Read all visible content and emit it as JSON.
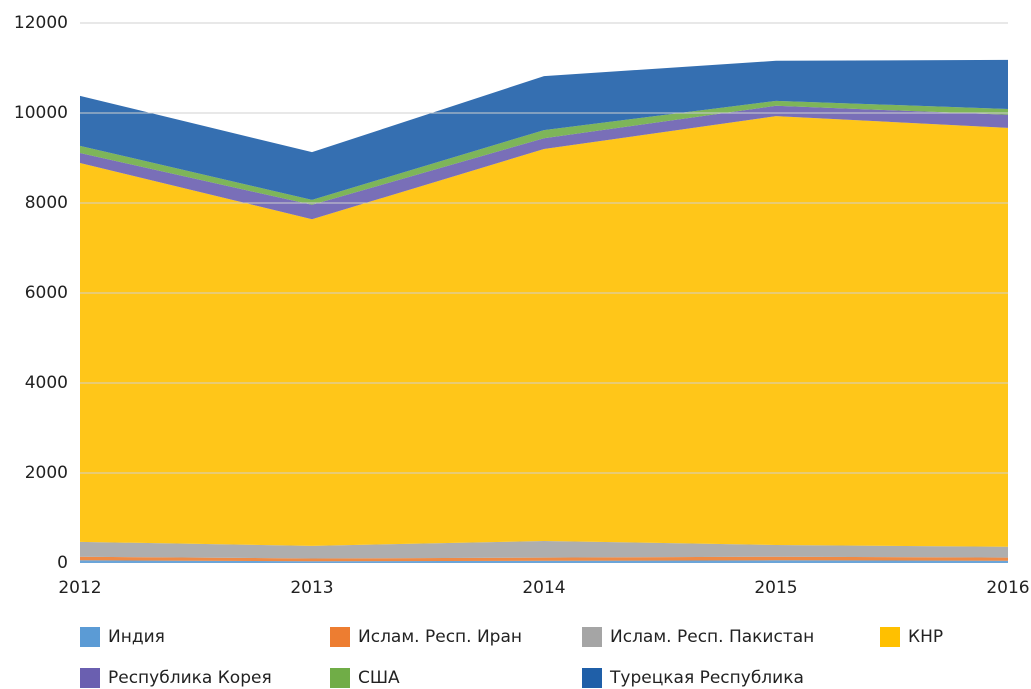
{
  "chart_data": {
    "type": "stacked_area",
    "categories": [
      "2012",
      "2013",
      "2014",
      "2015",
      "2016"
    ],
    "series": [
      {
        "name": "Индия",
        "color": "#5b9bd5",
        "values": [
          60,
          40,
          50,
          60,
          50
        ]
      },
      {
        "name": "Ислам. Респ. Иран",
        "color": "#ed7d31",
        "values": [
          80,
          60,
          70,
          80,
          70
        ]
      },
      {
        "name": "Ислам. Респ. Пакистан",
        "color": "#a5a5a5",
        "values": [
          330,
          280,
          370,
          260,
          240
        ]
      },
      {
        "name": "КНР",
        "color": "#ffc000",
        "values": [
          8420,
          7260,
          8710,
          9530,
          9310
        ]
      },
      {
        "name": "Республика Корея",
        "color": "#6a5fb0",
        "values": [
          220,
          320,
          240,
          230,
          290
        ]
      },
      {
        "name": "США",
        "color": "#70ad47",
        "values": [
          160,
          110,
          180,
          110,
          130
        ]
      },
      {
        "name": "Турецкая Республика",
        "color": "#1f5fa8",
        "values": [
          1110,
          1060,
          1200,
          890,
          1090
        ]
      }
    ],
    "ylim": [
      0,
      12000
    ],
    "yticks": [
      0,
      2000,
      4000,
      6000,
      8000,
      10000,
      12000
    ],
    "grid": true
  }
}
